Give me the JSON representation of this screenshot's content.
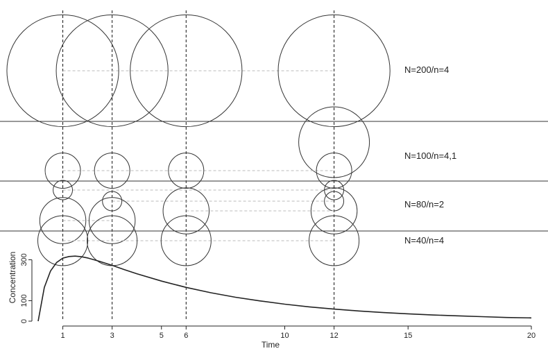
{
  "chart_data": {
    "type": "line",
    "title": "",
    "xlabel": "Time",
    "ylabel": "Concentration",
    "xlim": [
      0,
      20
    ],
    "ylim": [
      0,
      400
    ],
    "x_ticks": [
      1,
      3,
      5,
      6,
      10,
      12,
      15,
      20
    ],
    "y_ticks": [
      0,
      100,
      300
    ],
    "sampling_times": [
      1,
      3,
      6,
      12
    ],
    "curve": {
      "x": [
        0,
        0.25,
        0.5,
        0.75,
        1,
        1.25,
        1.5,
        1.75,
        2,
        2.5,
        3,
        3.5,
        4,
        5,
        6,
        7,
        8,
        9,
        10,
        11,
        12,
        13,
        14,
        15,
        16,
        17,
        18,
        19,
        20
      ],
      "y": [
        0,
        165,
        245,
        287,
        308,
        316,
        318,
        315,
        309,
        292,
        273,
        252,
        232,
        196,
        165,
        139,
        117,
        99,
        83,
        70,
        59,
        50,
        42,
        36,
        30,
        26,
        22,
        18,
        16
      ]
    },
    "panels": [
      {
        "label": "N=200/n=4",
        "groups": [
          {
            "times": [
              1,
              3,
              6,
              12
            ],
            "size": 200
          }
        ]
      },
      {
        "label": "N=100/n=4,1",
        "groups": [
          {
            "times": [
              12
            ],
            "size": 80
          },
          {
            "times": [
              1,
              3,
              6,
              12
            ],
            "size": 20
          }
        ]
      },
      {
        "label": "N=80/n=2",
        "groups": [
          {
            "times": [
              1,
              12
            ],
            "size": 6
          },
          {
            "times": [
              3,
              12
            ],
            "size": 6
          },
          {
            "times": [
              6,
              12
            ],
            "size": 34
          },
          {
            "times": [
              1,
              3
            ],
            "size": 34
          }
        ]
      },
      {
        "label": "N=40/n=4",
        "groups": [
          {
            "times": [
              1,
              3,
              6,
              12
            ],
            "size": 40
          }
        ]
      }
    ]
  }
}
